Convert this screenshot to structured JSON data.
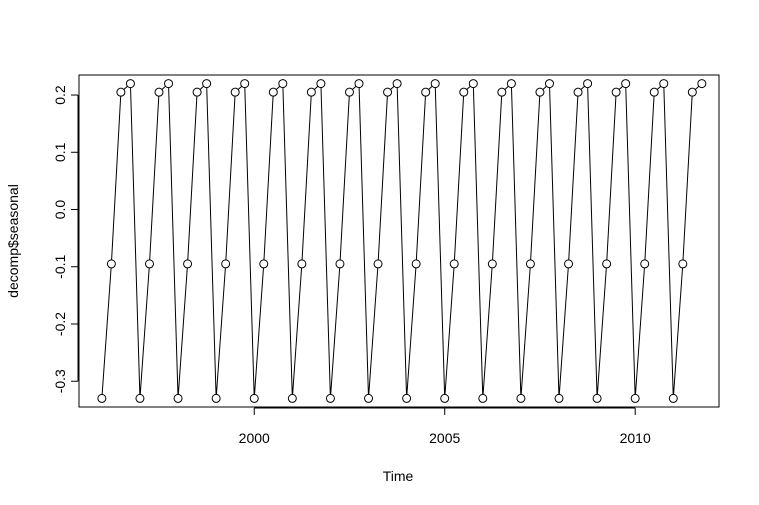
{
  "chart_data": {
    "type": "line",
    "title": "",
    "xlabel": "Time",
    "ylabel": "decomp$seasonal",
    "xlim": [
      1995.4,
      2012.2
    ],
    "ylim": [
      -0.345,
      0.235
    ],
    "x_ticks": [
      2000,
      2005,
      2010
    ],
    "x_tick_labels": [
      "2000",
      "2005",
      "2010"
    ],
    "y_ticks": [
      -0.3,
      -0.2,
      -0.1,
      0.0,
      0.1,
      0.2
    ],
    "y_tick_labels": [
      "-0.3",
      "-0.2",
      "-0.1",
      "0.0",
      "0.1",
      "0.2"
    ],
    "grid": false,
    "markers": "open-circle",
    "start": 1996,
    "frequency": 4,
    "season_values": [
      -0.33,
      -0.095,
      0.205,
      0.22
    ],
    "series": [
      {
        "values": [
          -0.33,
          -0.095,
          0.205,
          0.22,
          -0.33,
          -0.095,
          0.205,
          0.22,
          -0.33,
          -0.095,
          0.205,
          0.22,
          -0.33,
          -0.095,
          0.205,
          0.22,
          -0.33,
          -0.095,
          0.205,
          0.22,
          -0.33,
          -0.095,
          0.205,
          0.22,
          -0.33,
          -0.095,
          0.205,
          0.22,
          -0.33,
          -0.095,
          0.205,
          0.22,
          -0.33,
          -0.095,
          0.205,
          0.22,
          -0.33,
          -0.095,
          0.205,
          0.22,
          -0.33,
          -0.095,
          0.205,
          0.22,
          -0.33,
          -0.095,
          0.205,
          0.22,
          -0.33,
          -0.095,
          0.205,
          0.22,
          -0.33,
          -0.095,
          0.205,
          0.22,
          -0.33,
          -0.095,
          0.205,
          0.22,
          -0.33,
          -0.095,
          0.205,
          0.22
        ]
      }
    ]
  }
}
